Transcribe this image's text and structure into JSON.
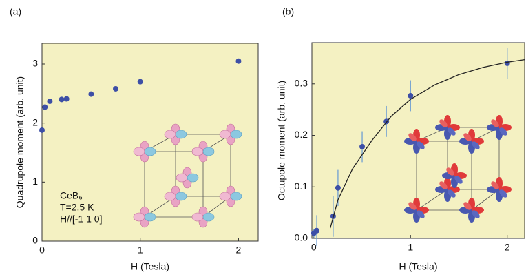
{
  "chart_data": [
    {
      "type": "scatter",
      "panel_label": "(a)",
      "x_label": "H  (Tesla)",
      "y_label": "Quadrupole moment  (arb. unit)",
      "xlim": [
        0,
        2.2
      ],
      "ylim": [
        0,
        3.35
      ],
      "xticks": [
        0,
        1,
        2
      ],
      "yticks": [
        0,
        1,
        2,
        3
      ],
      "background": "#f4f1c2",
      "annotations": [
        "CeB₆",
        "T=2.5 K",
        "H//[-1 1 0]"
      ],
      "series": [
        {
          "color": "#3d4fa6",
          "x": [
            0,
            0.03,
            0.08,
            0.2,
            0.25,
            0.5,
            0.75,
            1.0,
            2.0
          ],
          "values": [
            1.88,
            2.27,
            2.37,
            2.4,
            2.41,
            2.49,
            2.58,
            2.7,
            3.05
          ]
        }
      ]
    },
    {
      "type": "scatter",
      "panel_label": "(b)",
      "x_label": "H  (Tesla)",
      "y_label": "Octupole moment  (arb. unit)",
      "xlim": [
        -0.02,
        2.18
      ],
      "ylim": [
        0,
        0.38
      ],
      "xticks": [
        0,
        1,
        2
      ],
      "yticks": [
        {
          "value": 0,
          "label": "0.0"
        },
        0.1,
        0.2,
        0.3
      ],
      "background": "#f4f1c2",
      "series": [
        {
          "color": "#3d4fa6",
          "error_color": "#6f9fd2",
          "x": [
            0,
            0.03,
            0.2,
            0.25,
            0.5,
            0.75,
            1.0,
            2.0
          ],
          "values": [
            0.01,
            0.015,
            0.043,
            0.098,
            0.178,
            0.227,
            0.277,
            0.34
          ],
          "errors": [
            0.008,
            0.03,
            0.04,
            0.035,
            0.03,
            0.03,
            0.03,
            0.03
          ]
        },
        {
          "style": "line",
          "color": "#222222",
          "x": [
            0.17,
            0.25,
            0.4,
            0.6,
            0.8,
            1.0,
            1.25,
            1.5,
            1.75,
            2.0,
            2.18
          ],
          "values": [
            0.02,
            0.075,
            0.135,
            0.19,
            0.237,
            0.27,
            0.298,
            0.318,
            0.332,
            0.342,
            0.347
          ]
        }
      ]
    }
  ]
}
